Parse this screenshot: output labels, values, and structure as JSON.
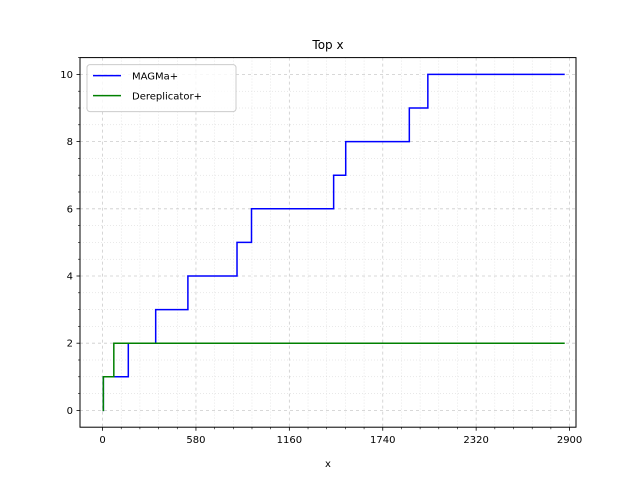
{
  "chart_data": {
    "type": "line",
    "title": "Top x",
    "xlabel": "x",
    "ylabel": "",
    "xlim": [
      -140,
      2940
    ],
    "ylim": [
      -0.5,
      10.5
    ],
    "xticks": [
      0,
      580,
      1160,
      1740,
      2320,
      2900
    ],
    "yticks": [
      0,
      2,
      4,
      6,
      8,
      10
    ],
    "grid": true,
    "legend_position": "top-left",
    "step": true,
    "series": [
      {
        "name": "MAGMa+",
        "color": "#0000ff",
        "x": [
          0,
          5,
          160,
          330,
          530,
          835,
          925,
          1435,
          1510,
          1905,
          2020,
          2870
        ],
        "y": [
          0,
          1,
          2,
          3,
          4,
          5,
          6,
          7,
          8,
          9,
          10,
          10
        ]
      },
      {
        "name": "Dereplicator+",
        "color": "#008000",
        "x": [
          0,
          5,
          70,
          2870
        ],
        "y": [
          0,
          1,
          2,
          2
        ]
      }
    ]
  }
}
